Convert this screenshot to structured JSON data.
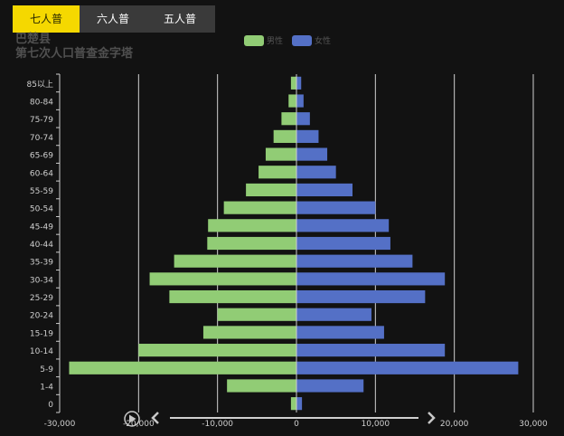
{
  "tabs": [
    {
      "label": "七人普",
      "active": true
    },
    {
      "label": "六人普",
      "active": false
    },
    {
      "label": "五人普",
      "active": false
    }
  ],
  "chart_data": {
    "type": "bar",
    "orientation": "horizontal-population-pyramid",
    "title": "巴楚县",
    "subtitle": "第七次人口普查金字塔",
    "categories": [
      "0",
      "1-4",
      "5-9",
      "10-14",
      "15-19",
      "20-24",
      "25-29",
      "30-34",
      "35-39",
      "40-44",
      "45-49",
      "50-54",
      "55-59",
      "60-64",
      "65-69",
      "70-74",
      "75-79",
      "80-84",
      "85以上"
    ],
    "series": [
      {
        "name": "男性",
        "color": "#91cc75",
        "values": [
          -700,
          -8800,
          -28800,
          -20000,
          -11800,
          -10000,
          -16100,
          -18600,
          -15500,
          -11300,
          -11200,
          -9200,
          -6400,
          -4800,
          -3900,
          -2900,
          -1900,
          -1000,
          -700
        ]
      },
      {
        "name": "女性",
        "color": "#5470c6",
        "values": [
          700,
          8500,
          28100,
          18800,
          11100,
          9500,
          16300,
          18800,
          14700,
          11900,
          11700,
          10000,
          7100,
          5000,
          3900,
          2800,
          1700,
          900,
          600
        ]
      }
    ],
    "xlim": [
      -30000,
      30000
    ],
    "xticks": [
      -30000,
      -20000,
      -10000,
      0,
      10000,
      20000,
      30000
    ],
    "xtick_labels": [
      "-30,000",
      "-20,000",
      "-10,000",
      "0",
      "10,000",
      "20,000",
      "30,000"
    ],
    "grid": true,
    "legend_position": "top-center"
  },
  "timeline": {
    "play": "play-icon",
    "prev": "chevron-left-icon",
    "next": "chevron-right-icon"
  }
}
